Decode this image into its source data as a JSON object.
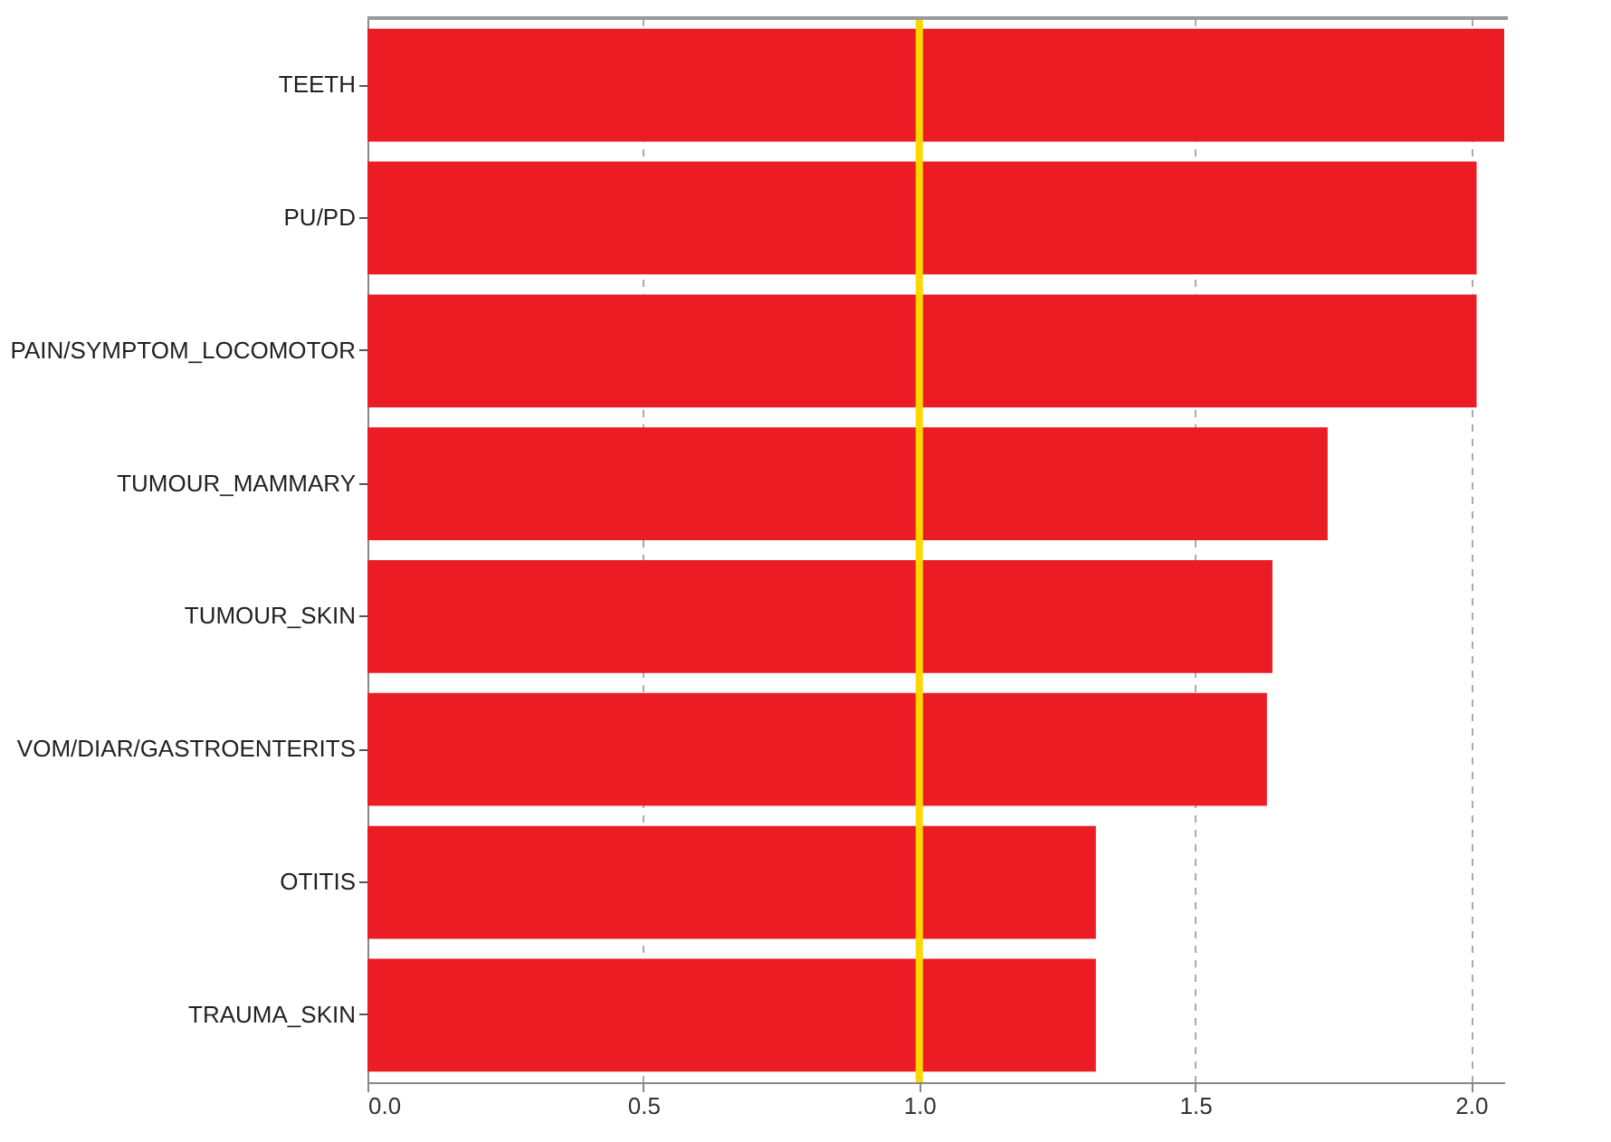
{
  "chart_data": {
    "type": "bar",
    "orientation": "horizontal",
    "categories": [
      "TEETH",
      "PU/PD",
      "PAIN/SYMPTOM_LOCOMOTOR",
      "TUMOUR_MAMMARY",
      "TUMOUR_SKIN",
      "VOM/DIAR/GASTROENTERITS",
      "OTITIS",
      "TRAUMA_SKIN"
    ],
    "values": [
      2.06,
      2.01,
      2.01,
      1.74,
      1.64,
      1.63,
      1.32,
      1.32
    ],
    "color": "#ec1c24",
    "xlim": [
      0,
      2.06
    ],
    "xticks": [
      {
        "value": 0,
        "label": "0.0"
      },
      0.5,
      {
        "value": 1,
        "label": "1.0"
      },
      1.5,
      {
        "value": 2,
        "label": "2.0"
      }
    ],
    "grid": "x",
    "ref_lines": [
      {
        "axis": "x",
        "value": 1.0,
        "color": "#ffd700"
      }
    ]
  }
}
